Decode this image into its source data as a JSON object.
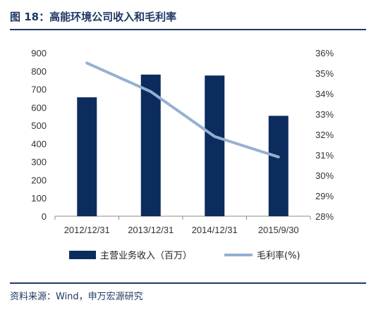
{
  "header": {
    "title": "图 18：高能环境公司收入和毛利率"
  },
  "footer": {
    "source": "资料来源：Wind，申万宏源研究"
  },
  "colors": {
    "bar": "#0d2c5e",
    "line": "#95b1d0",
    "accent": "#1f3864"
  },
  "chart_data": {
    "type": "bar",
    "categories": [
      "2012/12/31",
      "2013/12/31",
      "2014/12/31",
      "2015/9/30"
    ],
    "series": [
      {
        "name": "主营业务收入（百万）",
        "type": "bar",
        "axis": "left",
        "values": [
          655,
          780,
          775,
          553
        ]
      },
      {
        "name": "毛利率(%)",
        "type": "line",
        "axis": "right",
        "values": [
          35.5,
          34.1,
          31.9,
          30.9
        ]
      }
    ],
    "y_left": {
      "min": 0,
      "max": 900,
      "step": 100,
      "tick_labels": [
        "0",
        "100",
        "200",
        "300",
        "400",
        "500",
        "600",
        "700",
        "800",
        "900"
      ]
    },
    "y_right": {
      "min": 28,
      "max": 36,
      "step": 1,
      "tick_labels": [
        "28%",
        "29%",
        "30%",
        "31%",
        "32%",
        "33%",
        "34%",
        "35%",
        "36%"
      ]
    },
    "grid": false,
    "legend_position": "bottom"
  }
}
